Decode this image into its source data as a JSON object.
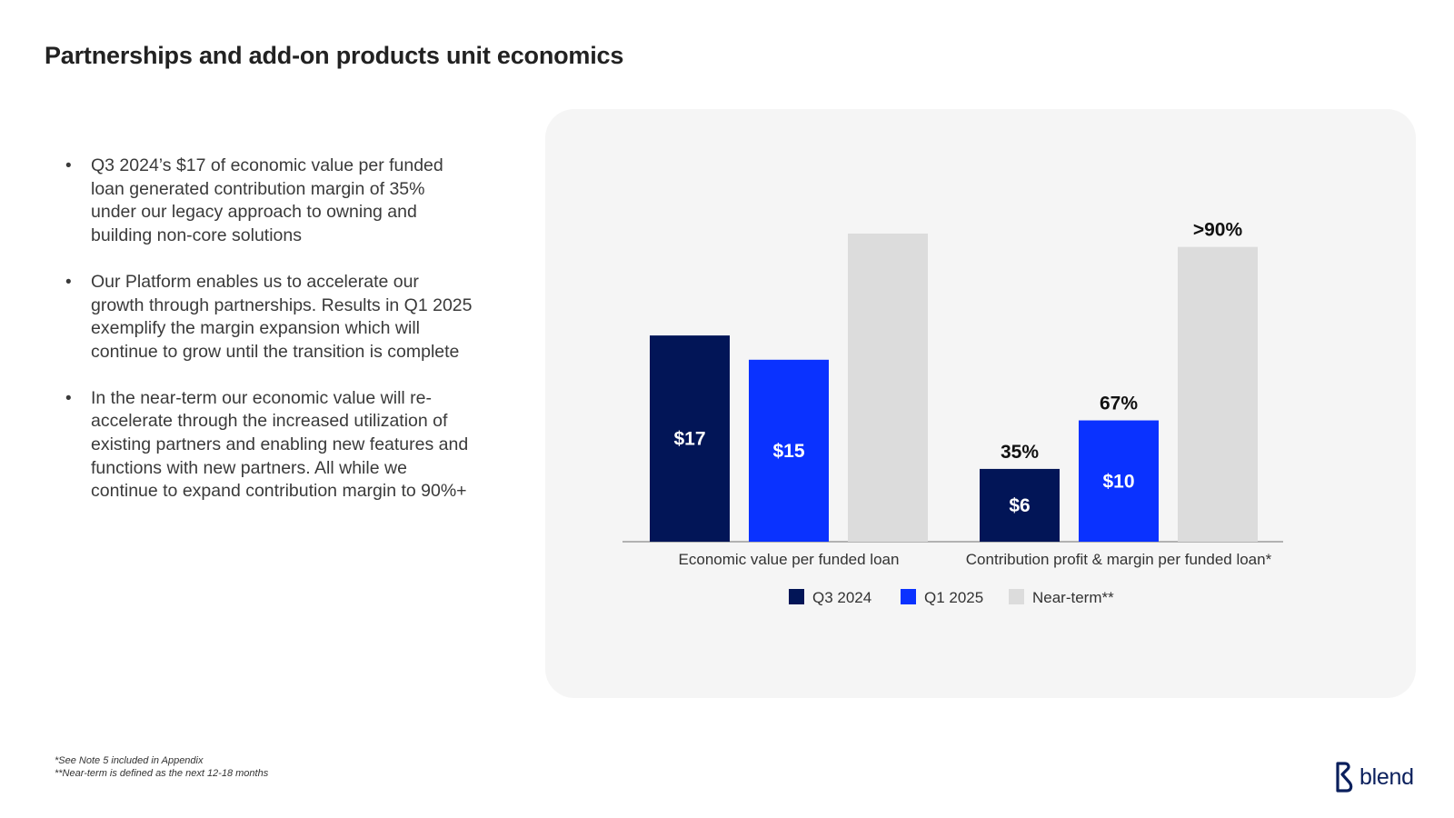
{
  "title": "Partnerships and add-on products unit economics",
  "bullets": [
    "Q3 2024’s $17 of economic value per funded loan generated contribution margin of 35% under our legacy approach to owning and building non-core solutions",
    "Our Platform enables us to accelerate our growth through partnerships. Results in Q1 2025 exemplify the margin expansion which will continue to grow until the transition is complete",
    "In the near-term our economic value will re-accelerate through the increased utilization of existing partners and enabling new features and functions with new partners. All while we continue to expand contribution margin to 90%+"
  ],
  "chart_data": {
    "type": "bar",
    "categories": [
      "Economic value per funded loan",
      "Contribution profit & margin per funded loan*"
    ],
    "series": [
      {
        "name": "Q3 2024",
        "color": "#021557",
        "values": [
          17,
          6
        ],
        "value_labels": [
          "$17",
          "$6"
        ],
        "top_labels": [
          "",
          "35%"
        ]
      },
      {
        "name": "Q1 2025",
        "color": "#0a32ff",
        "values": [
          15,
          10
        ],
        "value_labels": [
          "$15",
          "$10"
        ],
        "top_labels": [
          "",
          "67%"
        ]
      },
      {
        "name": "Near-term**",
        "color": "#dcdcdc",
        "values": [
          25.4,
          24.3
        ],
        "value_labels": [
          "",
          ""
        ],
        "top_labels": [
          "",
          ">90%"
        ]
      }
    ],
    "ylim": [
      0,
      25.4
    ],
    "grid": false,
    "legend_position": "bottom-center"
  },
  "footnotes": [
    "*See Note 5 included in Appendix",
    "**Near-term is defined as the next 12-18 months"
  ],
  "logo": {
    "text": "blend",
    "color": "#0a1f5c"
  }
}
